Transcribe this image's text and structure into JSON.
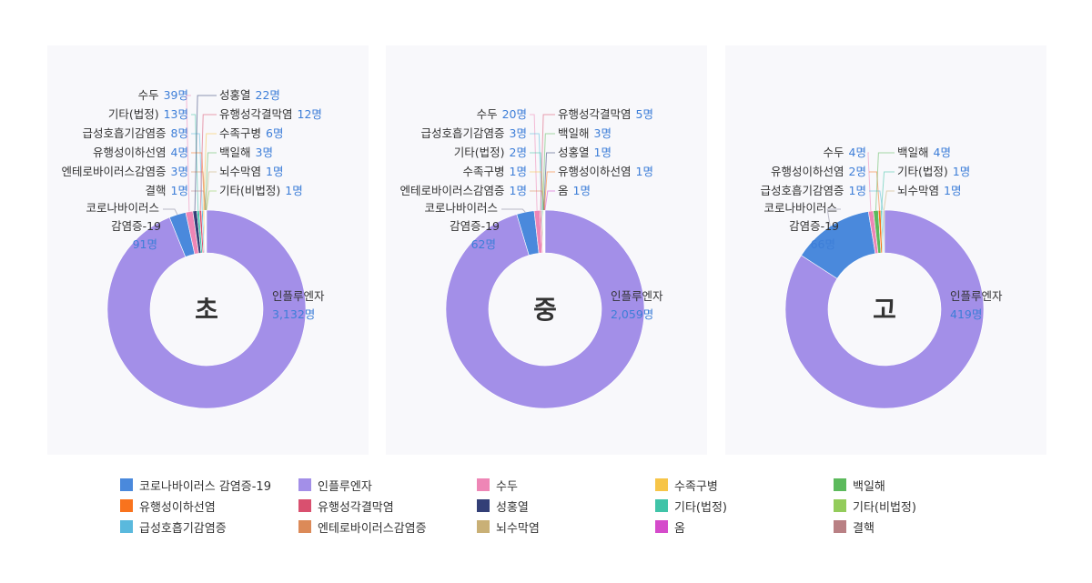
{
  "colors": {
    "코로나바이러스 감염증-19": "#4a89dc",
    "인플루엔자": "#a38fe8",
    "수두": "#ee86b6",
    "수족구병": "#f7c548",
    "백일해": "#5cba5c",
    "유행성이하선염": "#f9731d",
    "유행성각결막염": "#d9506f",
    "성홍열": "#333f77",
    "기타(법정)": "#40c4a8",
    "기타(비법정)": "#93cc5b",
    "급성호흡기감염증": "#5ab9dd",
    "엔테로바이러스감염증": "#dc8a58",
    "뇌수막염": "#c9b076",
    "옴": "#d54bcb",
    "결핵": "#b98084"
  },
  "unit": "명",
  "chart_data": [
    {
      "type": "pie",
      "center_label": "초",
      "slices": [
        {
          "name": "인플루엔자",
          "value": 3132,
          "value_label": "3,132명"
        },
        {
          "name": "코로나바이러스 감염증-19",
          "value": 91,
          "value_label": "91명",
          "display_lines": [
            "코로나바이러스",
            "감염증-19"
          ]
        },
        {
          "name": "수두",
          "value": 39,
          "value_label": "39명"
        },
        {
          "name": "성홍열",
          "value": 22,
          "value_label": "22명"
        },
        {
          "name": "기타(법정)",
          "value": 13,
          "value_label": "13명"
        },
        {
          "name": "유행성각결막염",
          "value": 12,
          "value_label": "12명"
        },
        {
          "name": "급성호흡기감염증",
          "value": 8,
          "value_label": "8명"
        },
        {
          "name": "수족구병",
          "value": 6,
          "value_label": "6명"
        },
        {
          "name": "유행성이하선염",
          "value": 4,
          "value_label": "4명"
        },
        {
          "name": "백일해",
          "value": 3,
          "value_label": "3명"
        },
        {
          "name": "엔테로바이러스감염증",
          "value": 3,
          "value_label": "3명"
        },
        {
          "name": "뇌수막염",
          "value": 1,
          "value_label": "1명"
        },
        {
          "name": "결핵",
          "value": 1,
          "value_label": "1명"
        },
        {
          "name": "기타(비법정)",
          "value": 1,
          "value_label": "1명"
        }
      ]
    },
    {
      "type": "pie",
      "center_label": "중",
      "slices": [
        {
          "name": "인플루엔자",
          "value": 2059,
          "value_label": "2,059명"
        },
        {
          "name": "코로나바이러스 감염증-19",
          "value": 62,
          "value_label": "62명",
          "display_lines": [
            "코로나바이러스",
            "감염증-19"
          ]
        },
        {
          "name": "수두",
          "value": 20,
          "value_label": "20명"
        },
        {
          "name": "유행성각결막염",
          "value": 5,
          "value_label": "5명"
        },
        {
          "name": "급성호흡기감염증",
          "value": 3,
          "value_label": "3명"
        },
        {
          "name": "백일해",
          "value": 3,
          "value_label": "3명"
        },
        {
          "name": "기타(법정)",
          "value": 2,
          "value_label": "2명"
        },
        {
          "name": "성홍열",
          "value": 1,
          "value_label": "1명"
        },
        {
          "name": "수족구병",
          "value": 1,
          "value_label": "1명"
        },
        {
          "name": "유행성이하선염",
          "value": 1,
          "value_label": "1명"
        },
        {
          "name": "엔테로바이러스감염증",
          "value": 1,
          "value_label": "1명"
        },
        {
          "name": "옴",
          "value": 1,
          "value_label": "1명"
        }
      ]
    },
    {
      "type": "pie",
      "center_label": "고",
      "slices": [
        {
          "name": "인플루엔자",
          "value": 419,
          "value_label": "419명"
        },
        {
          "name": "코로나바이러스 감염증-19",
          "value": 66,
          "value_label": "66명",
          "display_lines": [
            "코로나바이러스",
            "감염증-19"
          ]
        },
        {
          "name": "수두",
          "value": 4,
          "value_label": "4명"
        },
        {
          "name": "백일해",
          "value": 4,
          "value_label": "4명"
        },
        {
          "name": "유행성이하선염",
          "value": 2,
          "value_label": "2명"
        },
        {
          "name": "기타(법정)",
          "value": 1,
          "value_label": "1명"
        },
        {
          "name": "급성호흡기감염증",
          "value": 1,
          "value_label": "1명"
        },
        {
          "name": "뇌수막염",
          "value": 1,
          "value_label": "1명"
        }
      ]
    }
  ],
  "legend": [
    "코로나바이러스 감염증-19",
    "인플루엔자",
    "수두",
    "수족구병",
    "백일해",
    "유행성이하선염",
    "유행성각결막염",
    "성홍열",
    "기타(법정)",
    "기타(비법정)",
    "급성호흡기감염증",
    "엔테로바이러스감염증",
    "뇌수막염",
    "옴",
    "결핵"
  ]
}
